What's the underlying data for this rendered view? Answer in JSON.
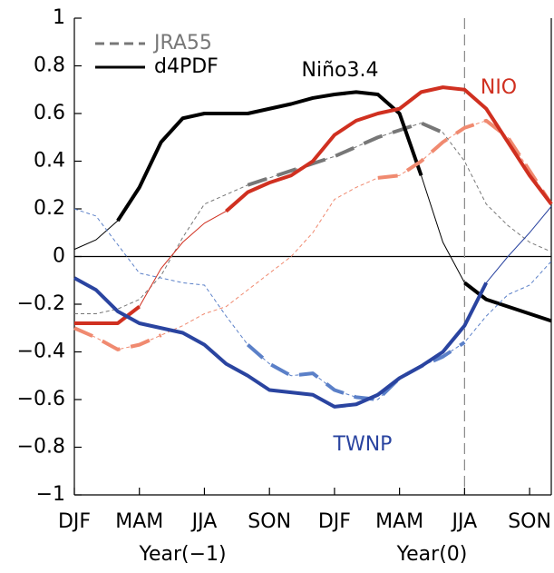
{
  "chart_data": {
    "type": "line",
    "categories": [
      "DJF",
      null,
      null,
      "MAM",
      null,
      null,
      "JJA",
      null,
      null,
      "SON",
      null,
      null,
      "DJF",
      null,
      null,
      "MAM",
      null,
      null,
      "JJA",
      null,
      null,
      "SON",
      null
    ],
    "period_labels": [
      "Year(−1)",
      "Year(0)"
    ],
    "ylim": [
      -1,
      1
    ],
    "yticks": [
      {
        "value": -1,
        "label": "−1"
      },
      {
        "value": -0.8,
        "label": "−0.8"
      },
      {
        "value": -0.6,
        "label": "−0.6"
      },
      {
        "value": -0.4,
        "label": "−0.4"
      },
      {
        "value": -0.2,
        "label": "−0.2"
      },
      0,
      0.2,
      0.4,
      0.6,
      0.8,
      1
    ],
    "legend": [
      {
        "name": "JRA55",
        "dashed": true
      },
      {
        "name": "d4PDF",
        "dashed": false
      }
    ],
    "indices": [
      {
        "name": "Niño3.4",
        "color": "#000000",
        "JRA55": {
          "color": "#777777",
          "values": [
            -0.24,
            -0.24,
            -0.22,
            -0.18,
            -0.08,
            0.08,
            0.22,
            0.26,
            0.3,
            0.33,
            0.36,
            0.39,
            0.42,
            0.46,
            0.5,
            0.53,
            0.56,
            0.52,
            0.4,
            0.22,
            0.13,
            0.06,
            0.02
          ],
          "significant": [
            false,
            false,
            false,
            false,
            false,
            false,
            false,
            false,
            true,
            true,
            true,
            true,
            true,
            true,
            true,
            true,
            true,
            true,
            false,
            false,
            false,
            false,
            false
          ]
        },
        "d4PDF": {
          "color": "#000000",
          "values": [
            0.03,
            0.07,
            0.15,
            0.29,
            0.48,
            0.58,
            0.6,
            0.6,
            0.6,
            0.62,
            0.64,
            0.665,
            0.68,
            0.69,
            0.68,
            0.6,
            0.34,
            0.06,
            -0.11,
            -0.18,
            -0.21,
            -0.24,
            -0.27
          ],
          "significant": [
            false,
            false,
            true,
            true,
            true,
            true,
            true,
            true,
            true,
            true,
            true,
            true,
            true,
            true,
            true,
            true,
            true,
            false,
            true,
            true,
            true,
            true,
            true
          ]
        }
      },
      {
        "name": "NIO",
        "color": "#d03020",
        "JRA55": {
          "color": "#f08a70",
          "values": [
            -0.3,
            -0.34,
            -0.39,
            -0.37,
            -0.33,
            -0.29,
            -0.24,
            -0.21,
            -0.14,
            -0.07,
            0.0,
            0.1,
            0.24,
            0.29,
            0.33,
            0.34,
            0.4,
            0.48,
            0.54,
            0.57,
            0.5,
            0.36,
            0.22
          ],
          "significant": [
            true,
            true,
            true,
            true,
            true,
            false,
            false,
            false,
            false,
            false,
            false,
            false,
            false,
            false,
            true,
            true,
            true,
            true,
            true,
            true,
            true,
            true,
            true
          ]
        },
        "d4PDF": {
          "color": "#d03020",
          "values": [
            -0.28,
            -0.28,
            -0.28,
            -0.21,
            -0.05,
            0.06,
            0.14,
            0.19,
            0.27,
            0.31,
            0.34,
            0.4,
            0.51,
            0.57,
            0.6,
            0.62,
            0.69,
            0.71,
            0.7,
            0.62,
            0.48,
            0.34,
            0.22
          ],
          "significant": [
            true,
            true,
            true,
            true,
            false,
            false,
            false,
            true,
            true,
            true,
            true,
            true,
            true,
            true,
            true,
            true,
            true,
            true,
            true,
            true,
            true,
            true,
            true
          ]
        }
      },
      {
        "name": "TWNP",
        "color": "#2a44a0",
        "JRA55": {
          "color": "#5b80c8",
          "values": [
            0.2,
            0.17,
            0.05,
            -0.07,
            -0.09,
            -0.11,
            -0.12,
            -0.25,
            -0.37,
            -0.45,
            -0.5,
            -0.49,
            -0.56,
            -0.59,
            -0.6,
            -0.51,
            -0.46,
            -0.42,
            -0.36,
            -0.25,
            -0.16,
            -0.12,
            -0.02
          ],
          "significant": [
            false,
            false,
            false,
            false,
            false,
            false,
            false,
            false,
            true,
            true,
            true,
            true,
            true,
            true,
            true,
            true,
            true,
            true,
            true,
            false,
            false,
            false,
            false
          ]
        },
        "d4PDF": {
          "color": "#2a44a0",
          "values": [
            -0.09,
            -0.14,
            -0.23,
            -0.28,
            -0.3,
            -0.32,
            -0.37,
            -0.45,
            -0.5,
            -0.56,
            -0.57,
            -0.58,
            -0.63,
            -0.62,
            -0.58,
            -0.51,
            -0.46,
            -0.4,
            -0.29,
            -0.11,
            0.0,
            0.1,
            0.21
          ],
          "significant": [
            true,
            true,
            true,
            true,
            true,
            true,
            true,
            true,
            true,
            true,
            true,
            true,
            true,
            true,
            true,
            true,
            true,
            true,
            true,
            true,
            false,
            false,
            false
          ]
        }
      }
    ]
  }
}
